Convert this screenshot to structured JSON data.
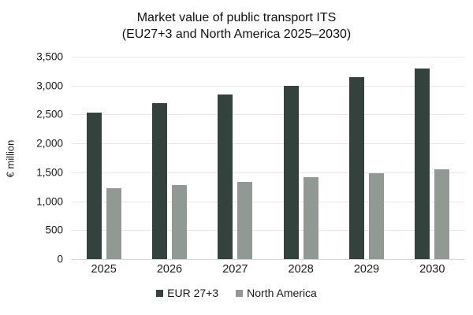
{
  "title": {
    "line1": "Market value of public transport ITS",
    "line2": "(EU27+3 and North America 2025–2030)"
  },
  "y_axis": {
    "label": "€ million",
    "tick_labels": [
      "3,500",
      "3,000",
      "2,500",
      "2,000",
      "1,500",
      "1,000",
      "500",
      "0"
    ]
  },
  "chart_data": {
    "type": "bar",
    "title": "Market value of public transport ITS (EU27+3 and North America 2025–2030)",
    "xlabel": "",
    "ylabel": "€ million",
    "categories": [
      "2025",
      "2026",
      "2027",
      "2028",
      "2029",
      "2030"
    ],
    "series": [
      {
        "name": "EUR 27+3",
        "color": "#33423c",
        "values": [
          2540,
          2690,
          2850,
          3000,
          3150,
          3300
        ]
      },
      {
        "name": "North America",
        "color": "#919995",
        "values": [
          1220,
          1280,
          1340,
          1410,
          1480,
          1550
        ]
      }
    ],
    "ylim": [
      0,
      3500
    ],
    "ytick_step": 500,
    "grid": true,
    "legend_position": "bottom"
  },
  "colors": {
    "background": "#ffffff",
    "gridline": "#e7e7e7",
    "text": "#1a1a1a",
    "series_eur": "#33423c",
    "series_na": "#919995"
  }
}
